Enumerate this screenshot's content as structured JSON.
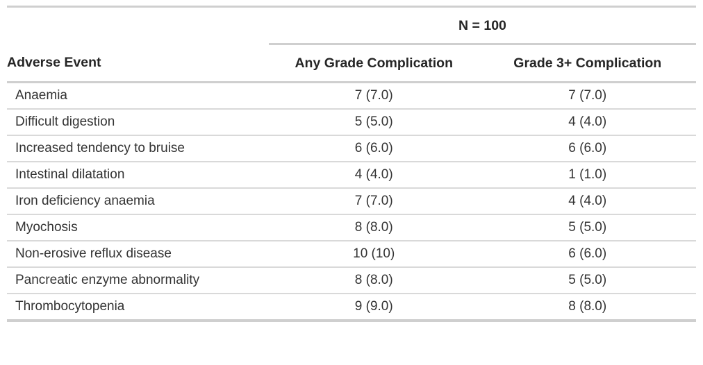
{
  "chart_data": {
    "type": "table",
    "spanner": "N = 100",
    "columns": [
      "Adverse Event",
      "Any Grade Complication",
      "Grade 3+ Complication"
    ],
    "rows": [
      [
        "Anaemia",
        "7 (7.0)",
        "7 (7.0)"
      ],
      [
        "Difficult digestion",
        "5 (5.0)",
        "4 (4.0)"
      ],
      [
        "Increased tendency to bruise",
        "6 (6.0)",
        "6 (6.0)"
      ],
      [
        "Intestinal dilatation",
        "4 (4.0)",
        "1 (1.0)"
      ],
      [
        "Iron deficiency anaemia",
        "7 (7.0)",
        "4 (4.0)"
      ],
      [
        "Myochosis",
        "8 (8.0)",
        "5 (5.0)"
      ],
      [
        "Non-erosive reflux disease",
        "10 (10)",
        "6 (6.0)"
      ],
      [
        "Pancreatic enzyme abnormality",
        "8 (8.0)",
        "5 (5.0)"
      ],
      [
        "Thrombocytopenia",
        "9 (9.0)",
        "8 (8.0)"
      ]
    ],
    "layout": {
      "value_alignment": "center",
      "event_alignment": "left",
      "spanner_spans_columns": [
        1,
        2
      ]
    }
  },
  "colors": {
    "border_major": "#cfcfcf",
    "border_row": "#d9d9d9",
    "text": "#333333",
    "header_text": "#262626",
    "background": "#ffffff"
  }
}
